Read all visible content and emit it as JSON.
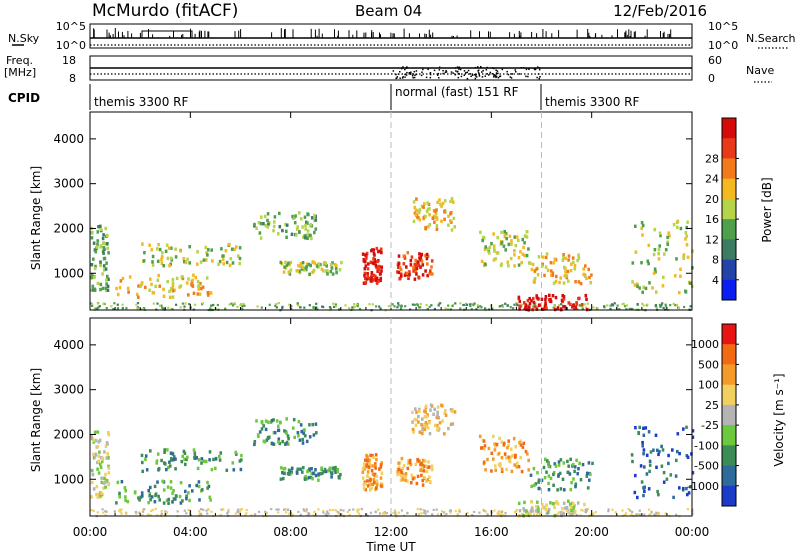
{
  "header": {
    "station": "McMurdo (fitACF)",
    "beam": "Beam 04",
    "date": "12/Feb/2016"
  },
  "panels": {
    "nsky": {
      "label": "N.Sky",
      "ticks": [
        "10^5",
        "10^0"
      ]
    },
    "nsearch": {
      "label": "N.Search",
      "ticks": [
        "10^5",
        "10^0"
      ]
    },
    "freq": {
      "label_line1": "Freq.",
      "label_line2": "[MHz]",
      "ticks": [
        "18",
        "8"
      ]
    },
    "nave": {
      "label": "Nave",
      "ticks": [
        "60",
        "0"
      ]
    },
    "cpid": {
      "label": "CPID",
      "segments": [
        {
          "label": "themis 3300 RF",
          "start_hour": 0,
          "end_hour": 12
        },
        {
          "label": "normal (fast) 151 RF",
          "start_hour": 12,
          "end_hour": 18
        },
        {
          "label": "themis 3300 RF",
          "start_hour": 18,
          "end_hour": 24
        }
      ]
    }
  },
  "axes": {
    "xlabel": "Time UT",
    "ylabel": "Slant Range [km]",
    "xticks": [
      "00:00",
      "04:00",
      "08:00",
      "12:00",
      "16:00",
      "20:00",
      "00:00"
    ],
    "yticks": [
      "1000",
      "2000",
      "3000",
      "4000"
    ]
  },
  "chart_data": [
    {
      "type": "heatmap",
      "title": "",
      "xlabel": "Time UT",
      "ylabel": "Slant Range [km]",
      "xlim_hours": [
        0,
        24
      ],
      "ylim_km": [
        180,
        4600
      ],
      "colorbar": {
        "label": "Power [dB]",
        "ticks": [
          "4",
          "8",
          "12",
          "16",
          "20",
          "24",
          "28"
        ],
        "colors": [
          "#0a1ef0",
          "#2244a8",
          "#3c7c62",
          "#4fa04c",
          "#b5d44a",
          "#f4b820",
          "#f27a1c",
          "#e83a18",
          "#d60c0c"
        ]
      },
      "regions": [
        {
          "t": [
            0.0,
            0.7
          ],
          "r": [
            600,
            2100
          ],
          "level": 3
        },
        {
          "t": [
            1.0,
            4.8
          ],
          "r": [
            500,
            1000
          ],
          "level": 5
        },
        {
          "t": [
            2.0,
            6.0
          ],
          "r": [
            1200,
            1700
          ],
          "level": 4
        },
        {
          "t": [
            6.5,
            9.0
          ],
          "r": [
            1800,
            2400
          ],
          "level": 3
        },
        {
          "t": [
            7.5,
            10.0
          ],
          "r": [
            1000,
            1300
          ],
          "level": 4
        },
        {
          "t": [
            10.8,
            11.6
          ],
          "r": [
            800,
            1600
          ],
          "level": 8
        },
        {
          "t": [
            12.2,
            13.6
          ],
          "r": [
            900,
            1500
          ],
          "level": 7
        },
        {
          "t": [
            12.8,
            14.5
          ],
          "r": [
            2000,
            2700
          ],
          "level": 5
        },
        {
          "t": [
            15.5,
            17.5
          ],
          "r": [
            1200,
            2000
          ],
          "level": 4
        },
        {
          "t": [
            17.0,
            19.8
          ],
          "r": [
            220,
            550
          ],
          "level": 8
        },
        {
          "t": [
            17.5,
            20.0
          ],
          "r": [
            800,
            1500
          ],
          "level": 5
        },
        {
          "t": [
            21.5,
            24.0
          ],
          "r": [
            600,
            2200
          ],
          "level": 4
        }
      ]
    },
    {
      "type": "heatmap",
      "title": "",
      "xlabel": "Time UT",
      "ylabel": "Slant Range [km]",
      "xlim_hours": [
        0,
        24
      ],
      "ylim_km": [
        180,
        4600
      ],
      "colorbar": {
        "label": "Velocity [m s⁻¹]",
        "ticks": [
          "1000",
          "500",
          "100",
          "25",
          "-25",
          "-100",
          "-500",
          "-1000"
        ],
        "colors": [
          "#1a3cc8",
          "#2e6a9a",
          "#3c8c58",
          "#6cc83c",
          "#b4b4b4",
          "#f2d060",
          "#f49a28",
          "#f26a14",
          "#e81414"
        ]
      },
      "regions": [
        {
          "t": [
            0.0,
            0.7
          ],
          "r": [
            600,
            2100
          ],
          "level": 4
        },
        {
          "t": [
            1.0,
            4.8
          ],
          "r": [
            500,
            1000
          ],
          "level": 2
        },
        {
          "t": [
            2.0,
            6.0
          ],
          "r": [
            1200,
            1700
          ],
          "level": 2
        },
        {
          "t": [
            6.5,
            9.0
          ],
          "r": [
            1800,
            2400
          ],
          "level": 2
        },
        {
          "t": [
            7.5,
            10.0
          ],
          "r": [
            1000,
            1300
          ],
          "level": 2
        },
        {
          "t": [
            10.8,
            11.6
          ],
          "r": [
            800,
            1600
          ],
          "level": 6
        },
        {
          "t": [
            12.2,
            13.6
          ],
          "r": [
            900,
            1500
          ],
          "level": 6
        },
        {
          "t": [
            12.8,
            14.5
          ],
          "r": [
            2000,
            2700
          ],
          "level": 5
        },
        {
          "t": [
            15.5,
            17.5
          ],
          "r": [
            1200,
            2000
          ],
          "level": 6
        },
        {
          "t": [
            17.0,
            19.8
          ],
          "r": [
            220,
            550
          ],
          "level": 4
        },
        {
          "t": [
            17.5,
            20.0
          ],
          "r": [
            800,
            1500
          ],
          "level": 2
        },
        {
          "t": [
            21.5,
            24.0
          ],
          "r": [
            600,
            2200
          ],
          "level": 1
        }
      ]
    }
  ]
}
